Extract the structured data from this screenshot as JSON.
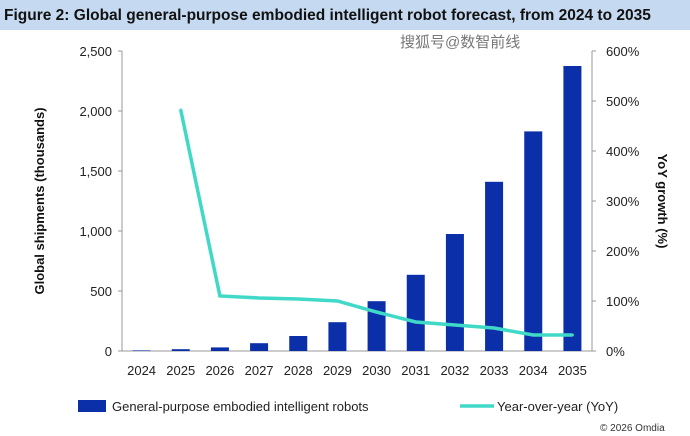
{
  "chart_data": {
    "type": "bar+line",
    "title": "Figure 2: Global general-purpose embodied intelligent robot forecast, from 2024 to 2035",
    "categories": [
      "2024",
      "2025",
      "2026",
      "2027",
      "2028",
      "2029",
      "2030",
      "2031",
      "2032",
      "2033",
      "2034",
      "2035"
    ],
    "series": [
      {
        "name": "General-purpose embodied intelligent robots",
        "type": "bar",
        "axis": "left",
        "color": "#0a2fa8",
        "values": [
          5,
          15,
          30,
          65,
          125,
          240,
          415,
          635,
          975,
          1410,
          1830,
          2375
        ]
      },
      {
        "name": "Year-over-year (YoY)",
        "type": "line",
        "axis": "right",
        "color": "#40d9c8",
        "values": [
          null,
          482,
          110,
          106,
          104,
          100,
          78,
          58,
          52,
          46,
          32,
          32
        ]
      }
    ],
    "ylabel": "Global shipments (thousands)",
    "ylabel_right": "YoY growth (%)",
    "ylim": [
      0,
      2500
    ],
    "yticks": [
      "0",
      "500",
      "1,000",
      "1,500",
      "2,000",
      "2,500"
    ],
    "ylim_right": [
      0,
      600
    ],
    "yticks_right": [
      "0%",
      "100%",
      "200%",
      "300%",
      "400%",
      "500%",
      "600%"
    ],
    "legend_position": "bottom",
    "credit": "© 2026 Omdia",
    "watermark": "搜狐号@数智前线"
  }
}
